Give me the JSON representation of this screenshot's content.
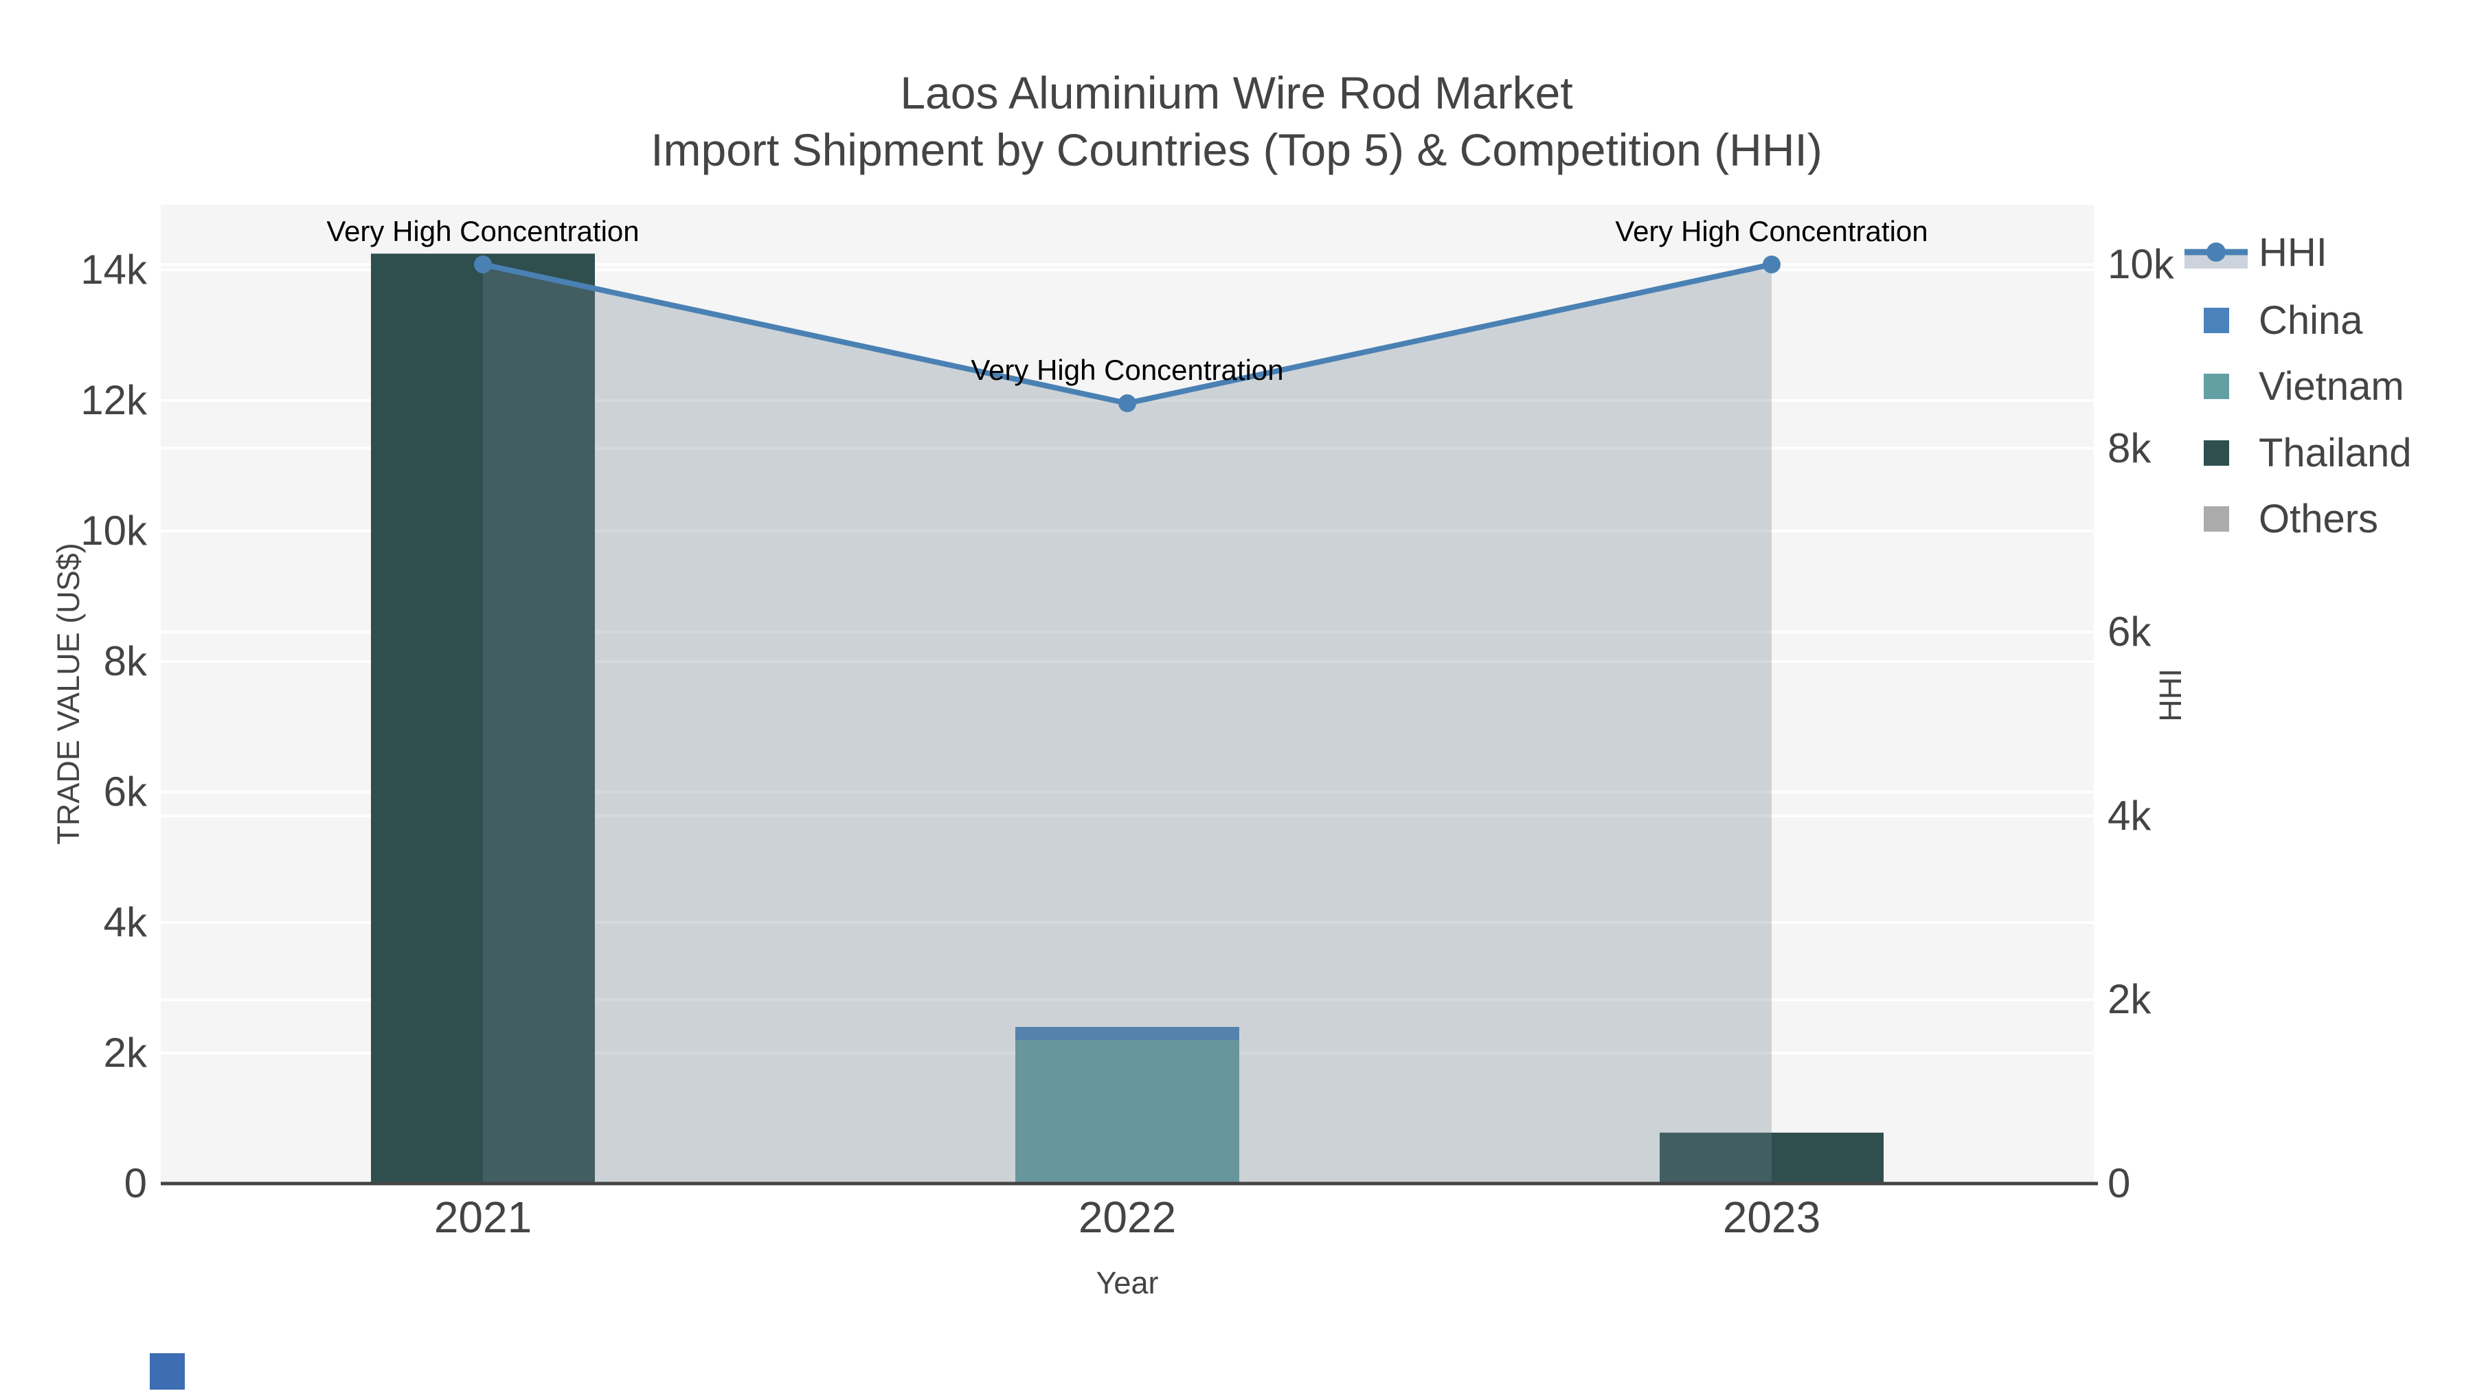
{
  "header": {
    "title_line1": "Laos Aluminium Wire Rod Market",
    "title_line2": "Import Shipment by Countries (Top 5) & Competition (HHI)"
  },
  "axes": {
    "x": {
      "title": "Year"
    },
    "y_left": {
      "title": "TRADE VALUE (US$)",
      "tick_labels": [
        "0",
        "2k",
        "4k",
        "6k",
        "8k",
        "10k",
        "12k",
        "14k"
      ],
      "tick_values": [
        0,
        2000,
        4000,
        6000,
        8000,
        10000,
        12000,
        14000
      ],
      "range": [
        0,
        15000
      ]
    },
    "y_right": {
      "title": "HHI",
      "tick_labels": [
        "0",
        "2k",
        "4k",
        "6k",
        "8k",
        "10k"
      ],
      "tick_values": [
        0,
        2000,
        4000,
        6000,
        8000,
        10000
      ],
      "range": [
        0,
        10650
      ]
    }
  },
  "legend": {
    "order": [
      "HHI",
      "China",
      "Vietnam",
      "Thailand",
      "Others"
    ]
  },
  "colors": {
    "background": "#ffffff",
    "plot_background": "#f5f5f5",
    "grid": "#ffffff",
    "axis_line": "#444444",
    "axis_text": "#444444",
    "annotation_text": "#000000",
    "legend_fill_sample": "#cdd3dc",
    "corner_mark": "#3d6eb4"
  },
  "chart_data": {
    "type": "bar+line",
    "title": "Laos Aluminium Wire Rod Market — Import Shipment by Countries (Top 5) & Competition (HHI)",
    "categories": [
      "2021",
      "2022",
      "2023"
    ],
    "bar_series": [
      {
        "name": "China",
        "color": "#4a82bc",
        "values": [
          0,
          200,
          0
        ]
      },
      {
        "name": "Vietnam",
        "color": "#63a0a4",
        "values": [
          0,
          2200,
          0
        ]
      },
      {
        "name": "Thailand",
        "color": "#2f4f4f",
        "values": [
          14250,
          0,
          780
        ]
      },
      {
        "name": "Others",
        "color": "#ababab",
        "values": [
          0,
          0,
          0
        ]
      }
    ],
    "stack_order": [
      "Vietnam",
      "China",
      "Thailand",
      "Others"
    ],
    "line_series": {
      "name": "HHI",
      "color": "#4a81b4",
      "fill_color": "rgba(112,128,144,0.30)",
      "values": [
        10000,
        8490,
        10000
      ]
    },
    "annotations": [
      {
        "text": "Very High Concentration",
        "category": "2021"
      },
      {
        "text": "Very High Concentration",
        "category": "2022"
      },
      {
        "text": "Very High Concentration",
        "category": "2023"
      }
    ],
    "xlabel": "Year",
    "ylabel_left": "TRADE VALUE (US$)",
    "ylabel_right": "HHI",
    "ylim_left": [
      0,
      15000
    ],
    "ylim_right": [
      0,
      10650
    ],
    "grid": true,
    "legend_position": "right"
  }
}
